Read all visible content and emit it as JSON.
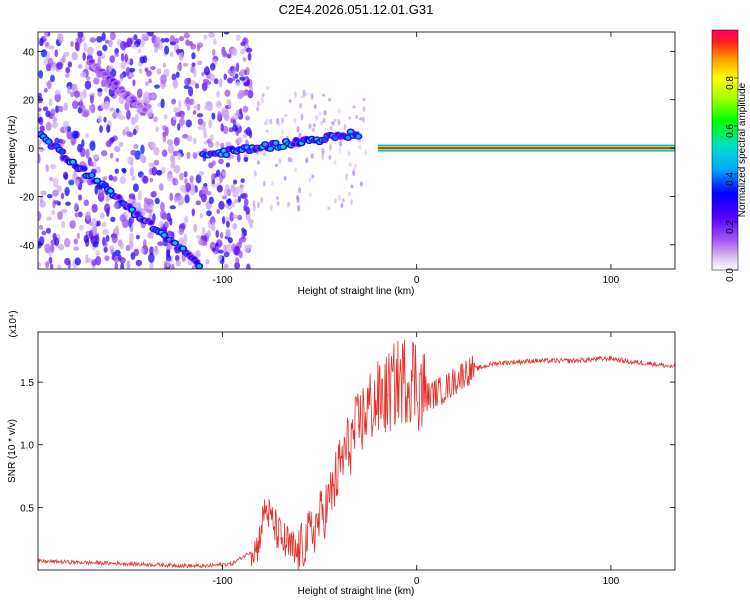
{
  "title": "C2E4.2026.051.12.01.G31",
  "chart_data": [
    {
      "type": "heatmap",
      "name": "spectrogram",
      "xlabel": "Height of straight line (km)",
      "ylabel": "Frequency (Hz)",
      "xlim": [
        -195,
        133
      ],
      "ylim": [
        -50,
        48
      ],
      "xticks": [
        -100,
        0,
        100
      ],
      "yticks": [
        40,
        20,
        0,
        -20,
        -40
      ],
      "colorbar": {
        "label": "Normalized spectral amplitude",
        "range": [
          0,
          1
        ],
        "ticks": [
          0.0,
          0.2,
          0.4,
          0.6,
          0.8
        ]
      },
      "features": [
        {
          "name": "constant-carrier",
          "x": [
            -20,
            133
          ],
          "y": [
            0,
            0
          ],
          "amplitude": 1.0
        },
        {
          "name": "rising-trace",
          "x": [
            -110,
            -30
          ],
          "y": [
            -3,
            6
          ],
          "amplitude": 0.5
        },
        {
          "name": "descending-trace",
          "x": [
            -195,
            -112
          ],
          "y": [
            6,
            -48
          ],
          "amplitude": 0.45
        },
        {
          "name": "upper-diagonal",
          "x": [
            -168,
            -140
          ],
          "y": [
            35,
            15
          ],
          "amplitude": 0.2
        }
      ]
    },
    {
      "type": "line",
      "name": "snr",
      "xlabel": "Height of straight line (km)",
      "ylabel": "SNR (10 * v/v)",
      "scale_label": "(x10⁴)",
      "xlim": [
        -195,
        133
      ],
      "ylim": [
        0,
        1.9
      ],
      "xticks": [
        -100,
        0,
        100
      ],
      "yticks": [
        0.5,
        1.0,
        1.5
      ],
      "series": [
        {
          "name": "SNR",
          "color": "#e8302a",
          "x": [
            -195,
            -150,
            -110,
            -95,
            -82,
            -78,
            -70,
            -62,
            -52,
            -45,
            -38,
            -30,
            -25,
            -20,
            -15,
            -10,
            -2,
            5,
            15,
            25,
            40,
            60,
            80,
            100,
            110,
            120,
            133
          ],
          "y": [
            0.07,
            0.05,
            0.03,
            0.05,
            0.18,
            0.5,
            0.25,
            0.12,
            0.35,
            0.55,
            0.9,
            1.15,
            1.3,
            1.35,
            1.4,
            1.5,
            1.55,
            1.38,
            1.45,
            1.58,
            1.65,
            1.67,
            1.67,
            1.69,
            1.66,
            1.65,
            1.62
          ]
        }
      ]
    }
  ]
}
